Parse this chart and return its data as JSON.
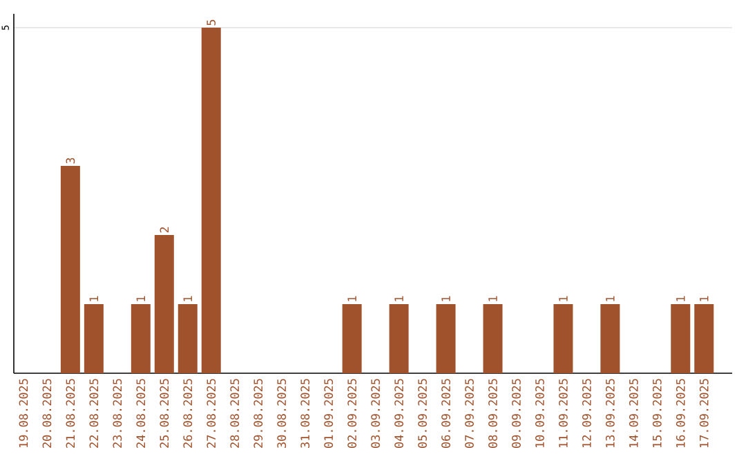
{
  "chart_data": {
    "type": "bar",
    "categories": [
      "19.08.2025",
      "20.08.2025",
      "21.08.2025",
      "22.08.2025",
      "23.08.2025",
      "24.08.2025",
      "25.08.2025",
      "26.08.2025",
      "27.08.2025",
      "28.08.2025",
      "29.08.2025",
      "30.08.2025",
      "31.08.2025",
      "01.09.2025",
      "02.09.2025",
      "03.09.2025",
      "04.09.2025",
      "05.09.2025",
      "06.09.2025",
      "07.09.2025",
      "08.09.2025",
      "09.09.2025",
      "10.09.2025",
      "11.09.2025",
      "12.09.2025",
      "13.09.2025",
      "14.09.2025",
      "15.09.2025",
      "16.09.2025",
      "17.09.2025"
    ],
    "values": [
      0,
      0,
      3,
      1,
      0,
      1,
      2,
      1,
      5,
      0,
      0,
      0,
      0,
      0,
      1,
      0,
      1,
      0,
      1,
      0,
      1,
      0,
      0,
      1,
      0,
      1,
      0,
      0,
      1,
      1
    ],
    "value_labels": [
      null,
      null,
      "3",
      "1",
      null,
      "1",
      "2",
      "1",
      "5",
      null,
      null,
      null,
      null,
      null,
      "1",
      null,
      "1",
      null,
      "1",
      null,
      "1",
      null,
      null,
      "1",
      null,
      "1",
      null,
      null,
      "1",
      "1"
    ],
    "color": "#a0522d",
    "ylim": [
      0,
      5.2
    ],
    "yticks": [
      5
    ],
    "grid": "y"
  }
}
